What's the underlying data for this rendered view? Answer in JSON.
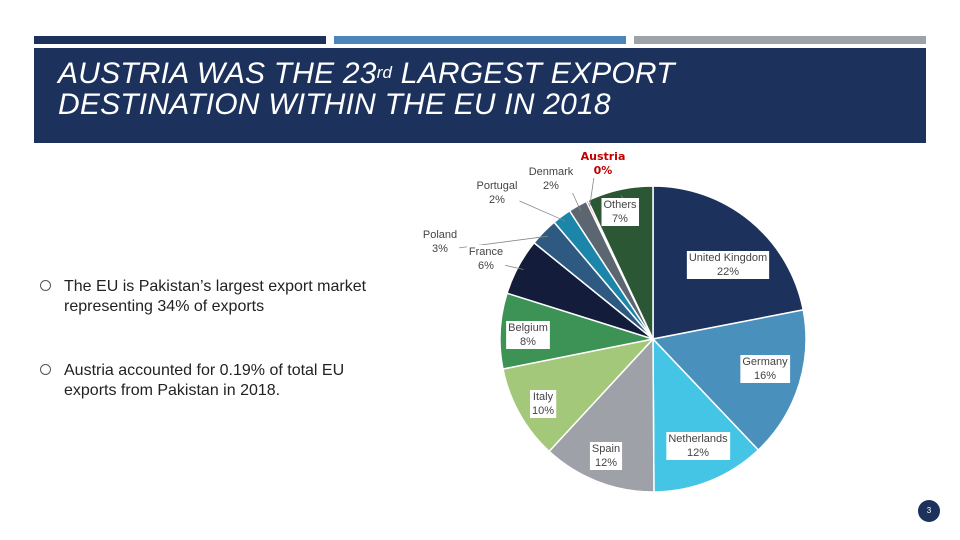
{
  "slide": {
    "title_part1": "AUSTRIA WAS THE 23",
    "title_sup": "rd",
    "title_part2": " LARGEST EXPORT",
    "title_line2": "DESTINATION WITHIN THE EU IN 2018",
    "accent_colors": [
      "#1c325d",
      "#4a86b8",
      "#9ea3a8"
    ],
    "bullets": [
      "The EU is Pakistan’s largest export market representing 34% of exports",
      "Austria accounted for 0.19% of total EU exports from Pakistan in 2018."
    ],
    "page_number": "3"
  },
  "chart_data": {
    "type": "pie",
    "slices": [
      {
        "name": "United Kingdom",
        "label": "22%",
        "value": 22,
        "color": "#1c325d"
      },
      {
        "name": "Germany",
        "label": "16%",
        "value": 16,
        "color": "#4a90bd"
      },
      {
        "name": "Netherlands",
        "label": "12%",
        "value": 12,
        "color": "#45c5e6"
      },
      {
        "name": "Spain",
        "label": "12%",
        "value": 12,
        "color": "#9ea2a8"
      },
      {
        "name": "Italy",
        "label": "10%",
        "value": 10,
        "color": "#a4c87a"
      },
      {
        "name": "Belgium",
        "label": "8%",
        "value": 8,
        "color": "#3d9355"
      },
      {
        "name": "France",
        "label": "6%",
        "value": 6,
        "color": "#131d3b"
      },
      {
        "name": "Poland",
        "label": "3%",
        "value": 3,
        "color": "#2e5a82"
      },
      {
        "name": "Portugal",
        "label": "2%",
        "value": 2,
        "color": "#1b85aa"
      },
      {
        "name": "Denmark",
        "label": "2%",
        "value": 2,
        "color": "#5b6670"
      },
      {
        "name": "Austria",
        "label": "0%",
        "value": 0.2,
        "color": "#c00000"
      },
      {
        "name": "Others",
        "label": "7%",
        "value": 7,
        "color": "#2b5734"
      }
    ]
  }
}
